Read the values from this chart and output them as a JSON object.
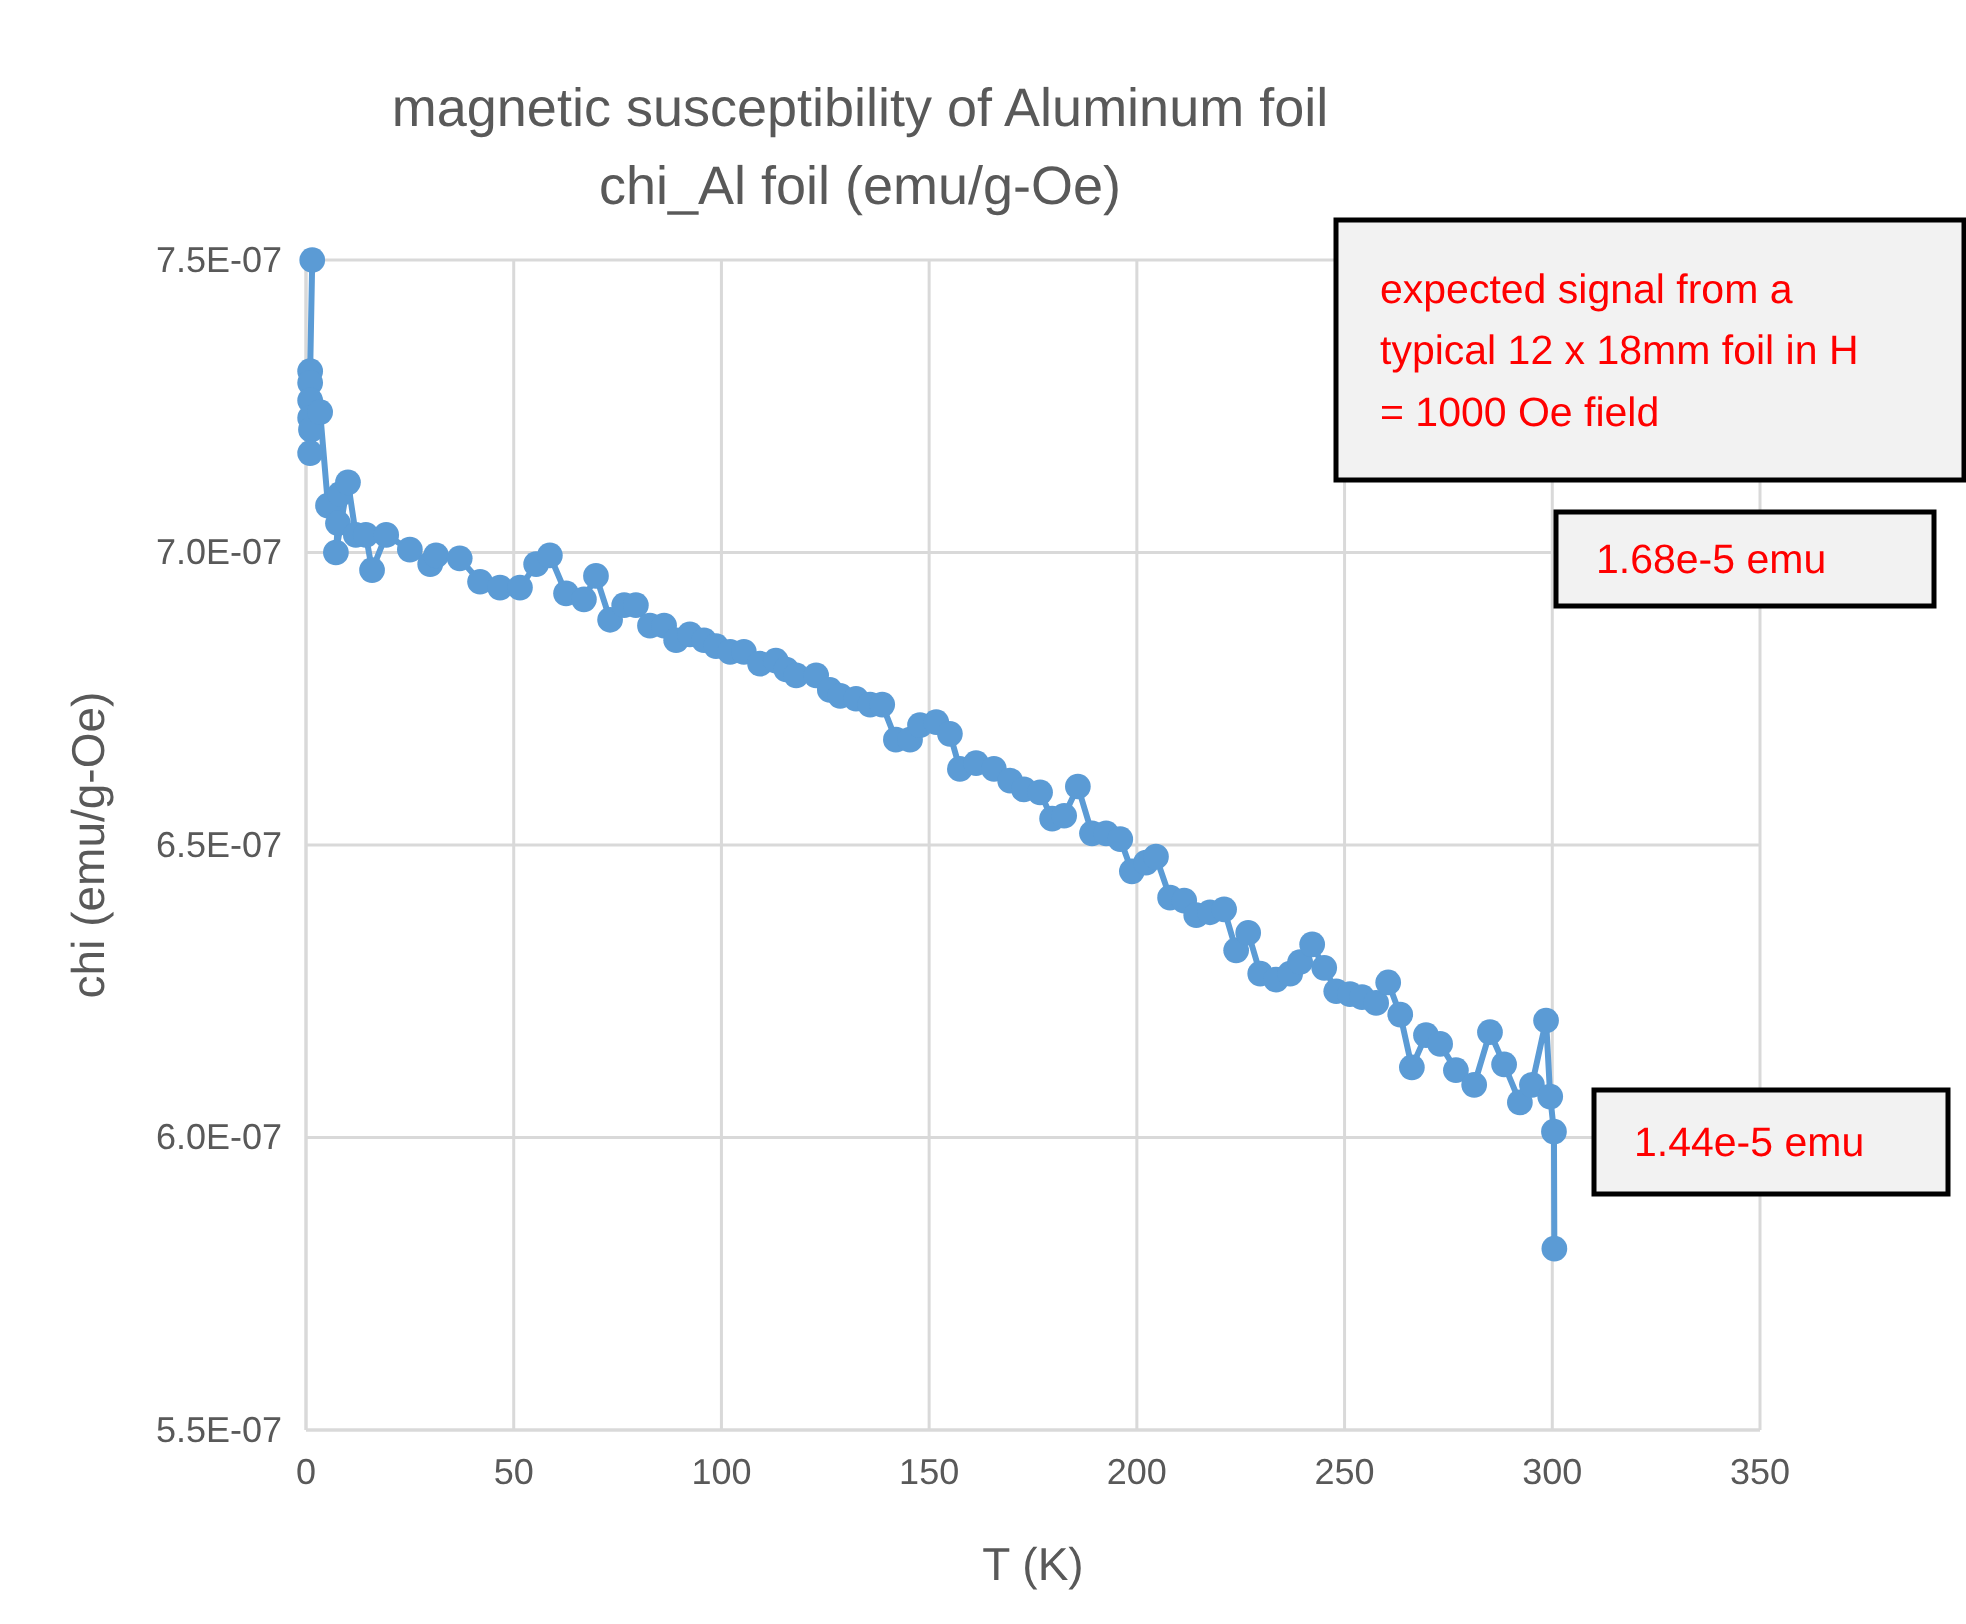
{
  "chart_data": {
    "type": "line",
    "title": "magnetic susceptibility of Aluminum foil",
    "subtitle": "chi_Al foil (emu/g-Oe)",
    "xlabel": "T (K)",
    "ylabel": "chi (emu/g-Oe)",
    "xlim": [
      0,
      350
    ],
    "xticks": [
      0,
      50,
      100,
      150,
      200,
      250,
      300,
      350
    ],
    "ylim": [
      5.5e-07,
      7.5e-07
    ],
    "yticks": [
      {
        "value": 5.5e-07,
        "label": "5.5E-07"
      },
      {
        "value": 6e-07,
        "label": "6.0E-07"
      },
      {
        "value": 6.5e-07,
        "label": "6.5E-07"
      },
      {
        "value": 7e-07,
        "label": "7.0E-07"
      },
      {
        "value": 7.5e-07,
        "label": "7.5E-07"
      }
    ],
    "grid": true,
    "marker": "circle",
    "line_style": "solid",
    "annotations": [
      "expected signal from a typical 12 x 18mm foil in H = 1000 Oe field",
      "1.68e-5 emu",
      "1.44e-5 emu"
    ],
    "series": [
      {
        "color": "#5b9bd5",
        "x": [
          1.5,
          1,
          1,
          1,
          1,
          1.2,
          1,
          3.4,
          5.3,
          7.7,
          8.2,
          7.2,
          10.1,
          12,
          14.4,
          15.9,
          19.3,
          25,
          29.9,
          31.3,
          37,
          41.9,
          46.7,
          51.5,
          55.4,
          58.7,
          62.6,
          66.9,
          69.8,
          73.2,
          76.6,
          79.4,
          82.8,
          86.2,
          89.1,
          92.4,
          95.8,
          98.7,
          102.1,
          105.4,
          109.3,
          113.1,
          115.6,
          118,
          122.8,
          126.1,
          128.6,
          132.4,
          135.8,
          138.7,
          142,
          145.4,
          147.8,
          151.7,
          155,
          157.4,
          161.3,
          165.6,
          169.5,
          172.8,
          176.7,
          179.6,
          182.5,
          185.8,
          189.2,
          192.6,
          196,
          198.8,
          202.2,
          204.6,
          208,
          211.4,
          214.3,
          217.6,
          221,
          223.9,
          226.8,
          229.7,
          233.5,
          236.9,
          239.3,
          242.2,
          245.1,
          248,
          251.3,
          254.2,
          257.6,
          260.5,
          263.4,
          266.2,
          269.6,
          273,
          276.8,
          281.2,
          285,
          288.4,
          292.2,
          295.1,
          298.5,
          299.5,
          300.4,
          300.5
        ],
        "values": [
          7.5e-07,
          7.31e-07,
          7.29e-07,
          7.26e-07,
          7.23e-07,
          7.21e-07,
          7.17e-07,
          7.24e-07,
          7.08e-07,
          7.05e-07,
          7.1e-07,
          7e-07,
          7.12e-07,
          7.03e-07,
          7.03e-07,
          6.97e-07,
          7.03e-07,
          7.005e-07,
          6.98e-07,
          6.995e-07,
          6.99e-07,
          6.95e-07,
          6.94e-07,
          6.94e-07,
          6.98e-07,
          6.995e-07,
          6.93e-07,
          6.92e-07,
          6.96e-07,
          6.885e-07,
          6.91e-07,
          6.91e-07,
          6.875e-07,
          6.875e-07,
          6.85e-07,
          6.86e-07,
          6.85e-07,
          6.84e-07,
          6.83e-07,
          6.83e-07,
          6.81e-07,
          6.815e-07,
          6.8e-07,
          6.79e-07,
          6.79e-07,
          6.765e-07,
          6.755e-07,
          6.75e-07,
          6.74e-07,
          6.74e-07,
          6.68e-07,
          6.68e-07,
          6.705e-07,
          6.71e-07,
          6.69e-07,
          6.63e-07,
          6.64e-07,
          6.63e-07,
          6.61e-07,
          6.595e-07,
          6.59e-07,
          6.545e-07,
          6.55e-07,
          6.6e-07,
          6.52e-07,
          6.52e-07,
          6.51e-07,
          6.455e-07,
          6.47e-07,
          6.48e-07,
          6.41e-07,
          6.405e-07,
          6.38e-07,
          6.385e-07,
          6.39e-07,
          6.32e-07,
          6.35e-07,
          6.28e-07,
          6.27e-07,
          6.28e-07,
          6.3e-07,
          6.33e-07,
          6.29e-07,
          6.25e-07,
          6.245e-07,
          6.24e-07,
          6.23e-07,
          6.265e-07,
          6.21e-07,
          6.12e-07,
          6.175e-07,
          6.16e-07,
          6.115e-07,
          6.09e-07,
          6.18e-07,
          6.125e-07,
          6.06e-07,
          6.09e-07,
          6.2e-07,
          6.07e-07,
          6.01e-07,
          5.81e-07
        ]
      }
    ]
  }
}
